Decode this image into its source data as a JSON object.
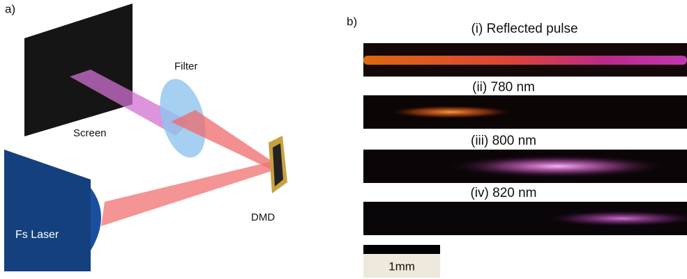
{
  "panel_a": {
    "label": "a)",
    "screen": "Screen",
    "filter": "Filter",
    "dmd": "DMD",
    "laser": "Fs Laser"
  },
  "panel_b": {
    "label": "b)",
    "images": [
      {
        "caption": "(i) Reflected pulse"
      },
      {
        "caption": "(ii) 780 nm"
      },
      {
        "caption": "(iii) 800 nm"
      },
      {
        "caption": "(iv) 820 nm"
      }
    ],
    "scale_bar": "1mm"
  }
}
